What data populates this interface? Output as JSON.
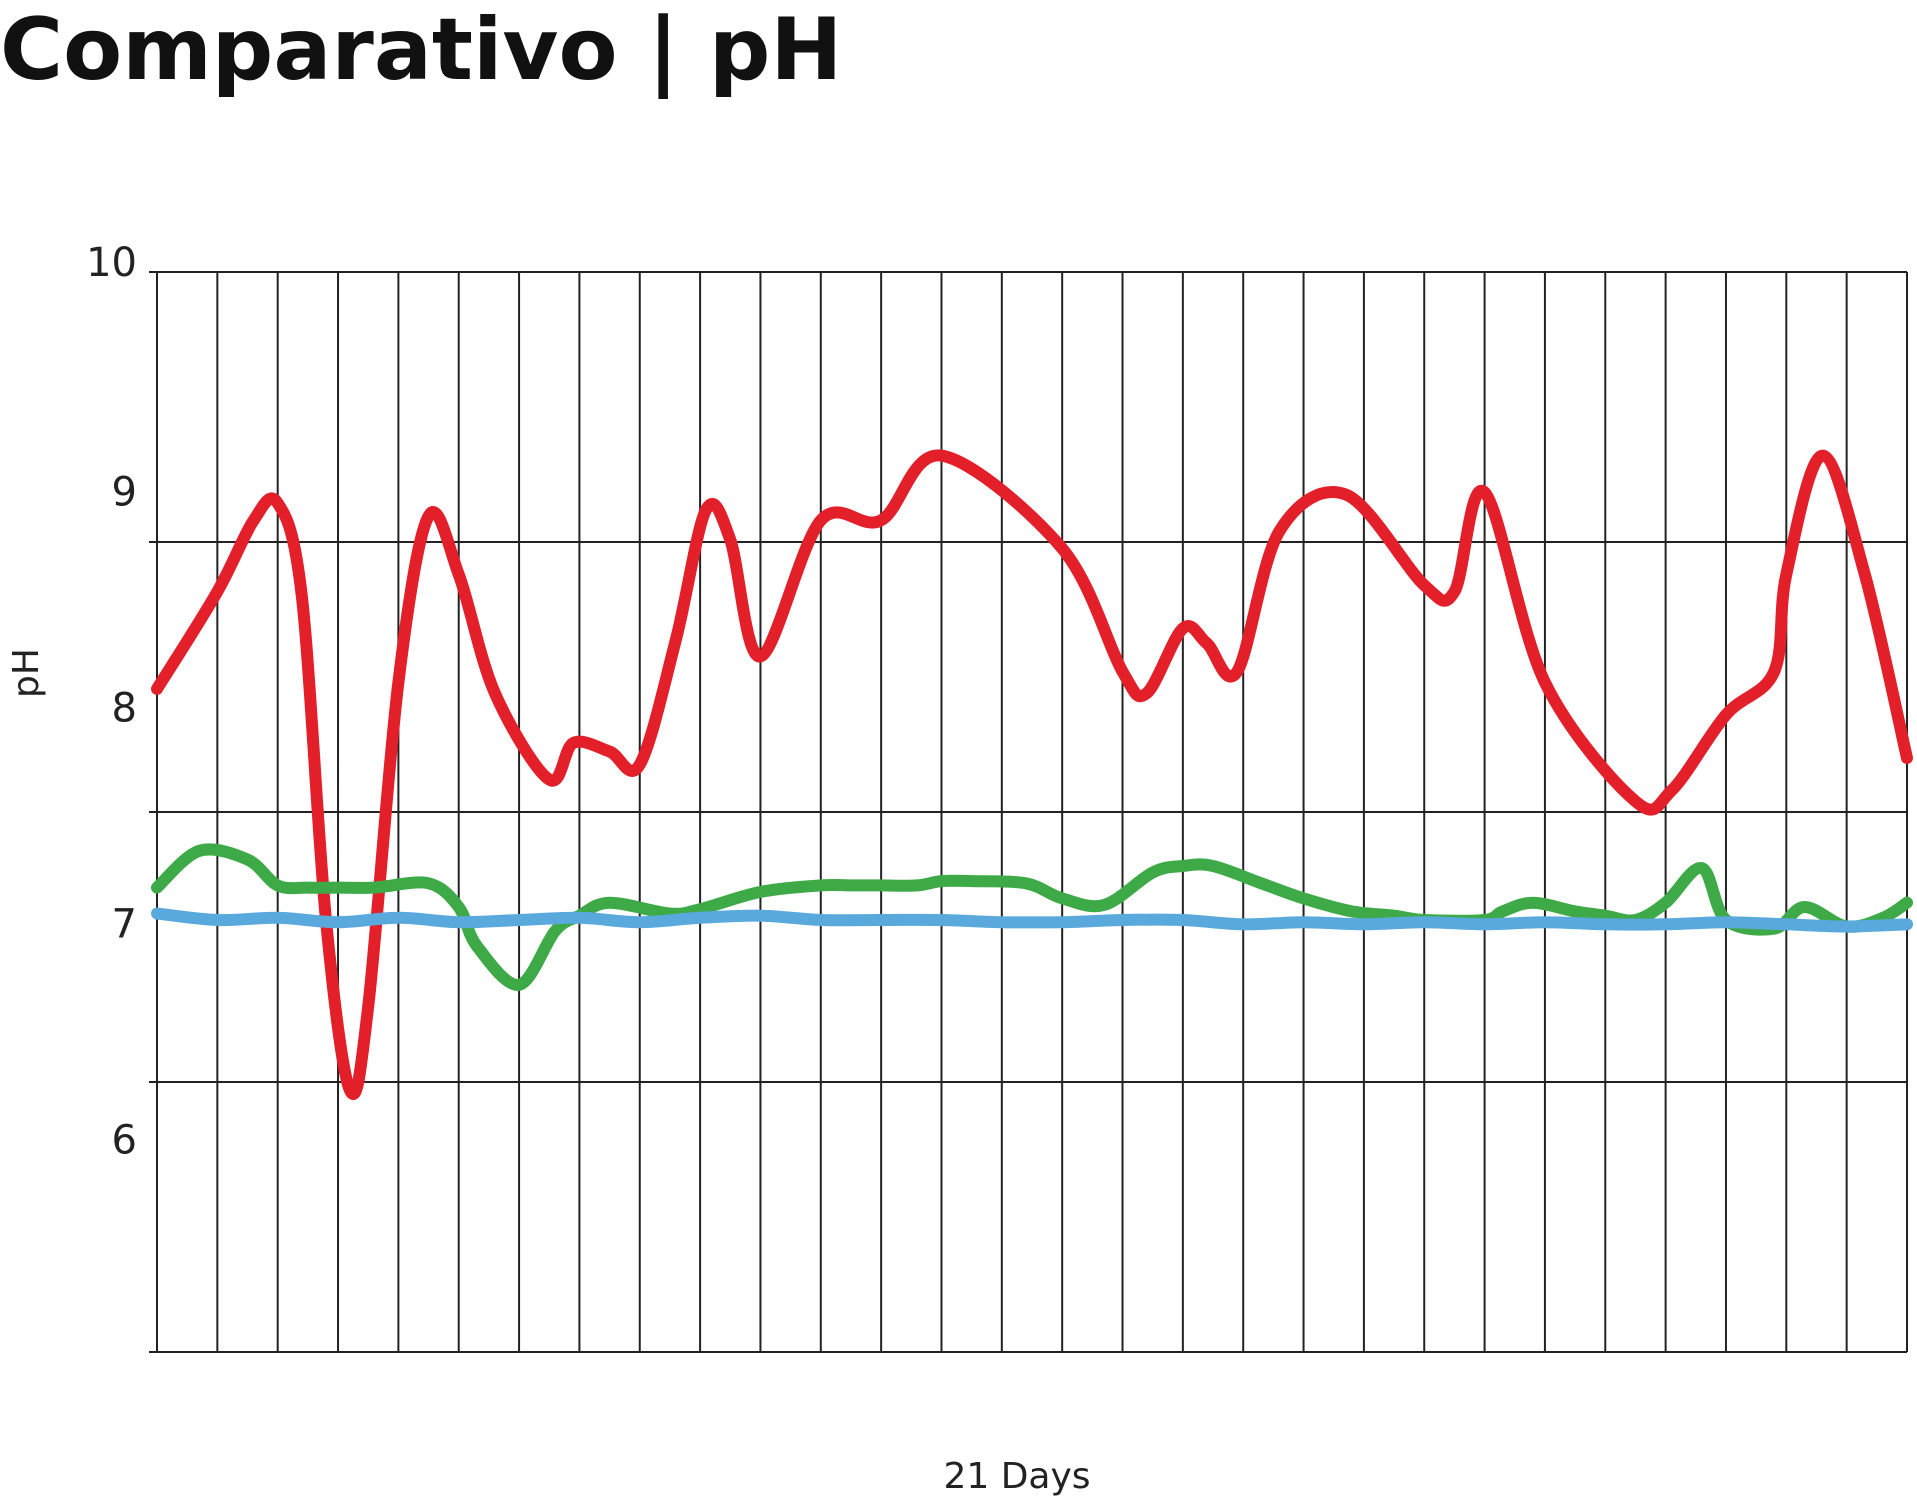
{
  "title": "Comparativo | pH",
  "chart_data": {
    "type": "line",
    "title": "Comparativo | pH",
    "xlabel": "21 Days",
    "ylabel": "pH",
    "ylim": [
      5,
      10
    ],
    "xlim": [
      0,
      29
    ],
    "yticks": [
      {
        "value": 10,
        "label": "10"
      },
      {
        "value": 9,
        "label": "9"
      },
      {
        "value": 8,
        "label": "8"
      },
      {
        "value": 7,
        "label": "7"
      },
      {
        "value": 6,
        "label": "6"
      }
    ],
    "grid": true,
    "series": [
      {
        "color": "#e3202a",
        "x": [
          0,
          1,
          1.6,
          2,
          2.4,
          2.8,
          3.2,
          3.5,
          4,
          4.5,
          5,
          5.6,
          6.5,
          6.9,
          7.5,
          8,
          8.6,
          9.1,
          9.5,
          10,
          11,
          12,
          13,
          15,
          16,
          16.4,
          17,
          17.4,
          17.9,
          18.6,
          19.7,
          21,
          21.5,
          22,
          23,
          24.5,
          25.1,
          26,
          26.8,
          27,
          27.6,
          28.3,
          29
        ],
        "y": [
          8.07,
          8.52,
          8.85,
          8.93,
          8.5,
          7.0,
          6.21,
          6.6,
          8.1,
          8.87,
          8.6,
          8.05,
          7.65,
          7.82,
          7.78,
          7.72,
          8.3,
          8.9,
          8.76,
          8.22,
          8.85,
          8.85,
          9.15,
          8.72,
          8.15,
          8.05,
          8.35,
          8.28,
          8.15,
          8.8,
          8.97,
          8.55,
          8.52,
          8.98,
          8.1,
          7.55,
          7.6,
          7.95,
          8.15,
          8.6,
          9.15,
          8.6,
          7.75
        ]
      },
      {
        "color": "#3daa47",
        "x": [
          0,
          0.7,
          1.5,
          2,
          2.5,
          3,
          3.6,
          4.5,
          5,
          5.3,
          6,
          6.6,
          7,
          7.5,
          8.5,
          9,
          10,
          11,
          11.5,
          12,
          12.6,
          13,
          13.5,
          14.4,
          15,
          15.7,
          16.5,
          17,
          17.5,
          18.3,
          19,
          19.8,
          20.5,
          21,
          22,
          22.3,
          22.8,
          23.5,
          24,
          24.5,
          25,
          25.6,
          26,
          26.8,
          27.3,
          28,
          28.6,
          29
        ],
        "y": [
          7.15,
          7.32,
          7.28,
          7.16,
          7.15,
          7.15,
          7.15,
          7.17,
          7.06,
          6.88,
          6.7,
          6.95,
          7.02,
          7.08,
          7.03,
          7.05,
          7.13,
          7.16,
          7.16,
          7.16,
          7.16,
          7.18,
          7.18,
          7.17,
          7.1,
          7.07,
          7.22,
          7.25,
          7.25,
          7.17,
          7.1,
          7.04,
          7.02,
          7.0,
          7.0,
          7.04,
          7.08,
          7.04,
          7.02,
          7.0,
          7.08,
          7.24,
          7.0,
          6.96,
          7.06,
          6.97,
          7.01,
          7.08
        ]
      },
      {
        "color": "#5aa9dd",
        "x": [
          0,
          1,
          2,
          3,
          4,
          5,
          6,
          7,
          8,
          9,
          10,
          11,
          12,
          13,
          14,
          15,
          16,
          17,
          18,
          19,
          20,
          21,
          22,
          23,
          24,
          25,
          26,
          27,
          28,
          29
        ],
        "y": [
          7.03,
          7.0,
          7.01,
          6.99,
          7.01,
          6.99,
          7.0,
          7.01,
          6.99,
          7.01,
          7.02,
          7.0,
          7.0,
          7.0,
          6.99,
          6.99,
          7.0,
          7.0,
          6.98,
          6.99,
          6.98,
          6.99,
          6.98,
          6.99,
          6.98,
          6.98,
          6.99,
          6.98,
          6.97,
          6.98
        ]
      }
    ]
  }
}
